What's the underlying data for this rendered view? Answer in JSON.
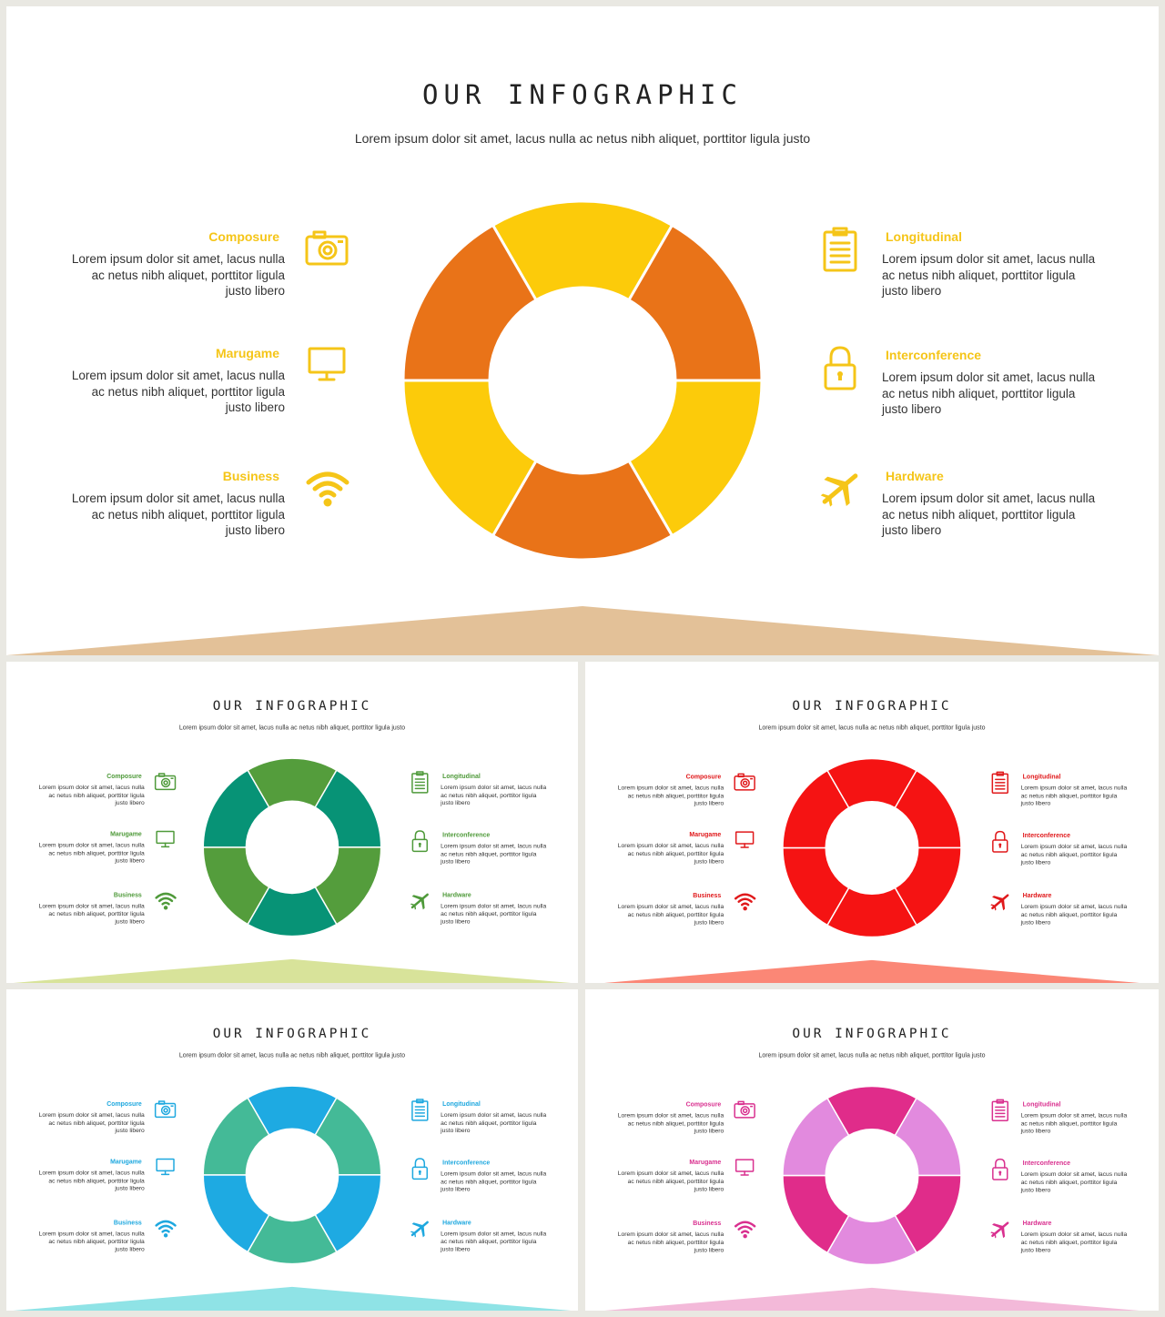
{
  "slide": {
    "title": "OUR INFOGRAPHIC",
    "subtitle": "Lorem ipsum dolor sit amet, lacus nulla ac netus nibh aliquet, porttitor ligula justo",
    "items_left": [
      {
        "title": "Composure",
        "icon": "camera-icon",
        "body": "Lorem ipsum dolor sit amet, lacus nulla ac netus nibh aliquet, porttitor ligula justo libero"
      },
      {
        "title": "Marugame",
        "icon": "monitor-icon",
        "body": "Lorem ipsum dolor sit amet, lacus nulla ac netus nibh aliquet, porttitor ligula justo libero"
      },
      {
        "title": "Business",
        "icon": "wifi-icon",
        "body": "Lorem ipsum dolor sit amet, lacus nulla ac netus nibh aliquet, porttitor ligula justo libero"
      }
    ],
    "items_right": [
      {
        "title": "Longitudinal",
        "icon": "clipboard-icon",
        "body": "Lorem ipsum dolor sit amet, lacus nulla ac netus nibh aliquet, porttitor ligula justo libero"
      },
      {
        "title": "Interconference",
        "icon": "lock-icon",
        "body": "Lorem ipsum dolor sit amet, lacus nulla ac netus nibh aliquet, porttitor ligula justo libero"
      },
      {
        "title": "Hardware",
        "icon": "airplane-icon",
        "body": "Lorem ipsum dolor sit amet, lacus nulla ac netus nibh aliquet, porttitor ligula justo libero"
      }
    ]
  },
  "themes": [
    {
      "name": "yellow-orange",
      "accent": "#f5c518",
      "seg_a": "#fccb0a",
      "seg_b": "#e97318",
      "ground": "#e3c198"
    },
    {
      "name": "green",
      "accent": "#4f9a3a",
      "seg_a": "#549d3c",
      "seg_b": "#079376",
      "ground": "#d8e39a"
    },
    {
      "name": "red",
      "accent": "#e0191b",
      "seg_a": "#f51313",
      "seg_b": "#f51313",
      "ground": "#fb8776"
    },
    {
      "name": "blue",
      "accent": "#1ea8df",
      "seg_a": "#1eaae2",
      "seg_b": "#44ba97",
      "ground": "#8fe3e6"
    },
    {
      "name": "pink",
      "accent": "#d9308f",
      "seg_a": "#e02c8a",
      "seg_b": "#e28ade",
      "ground": "#f3b9d9"
    }
  ]
}
